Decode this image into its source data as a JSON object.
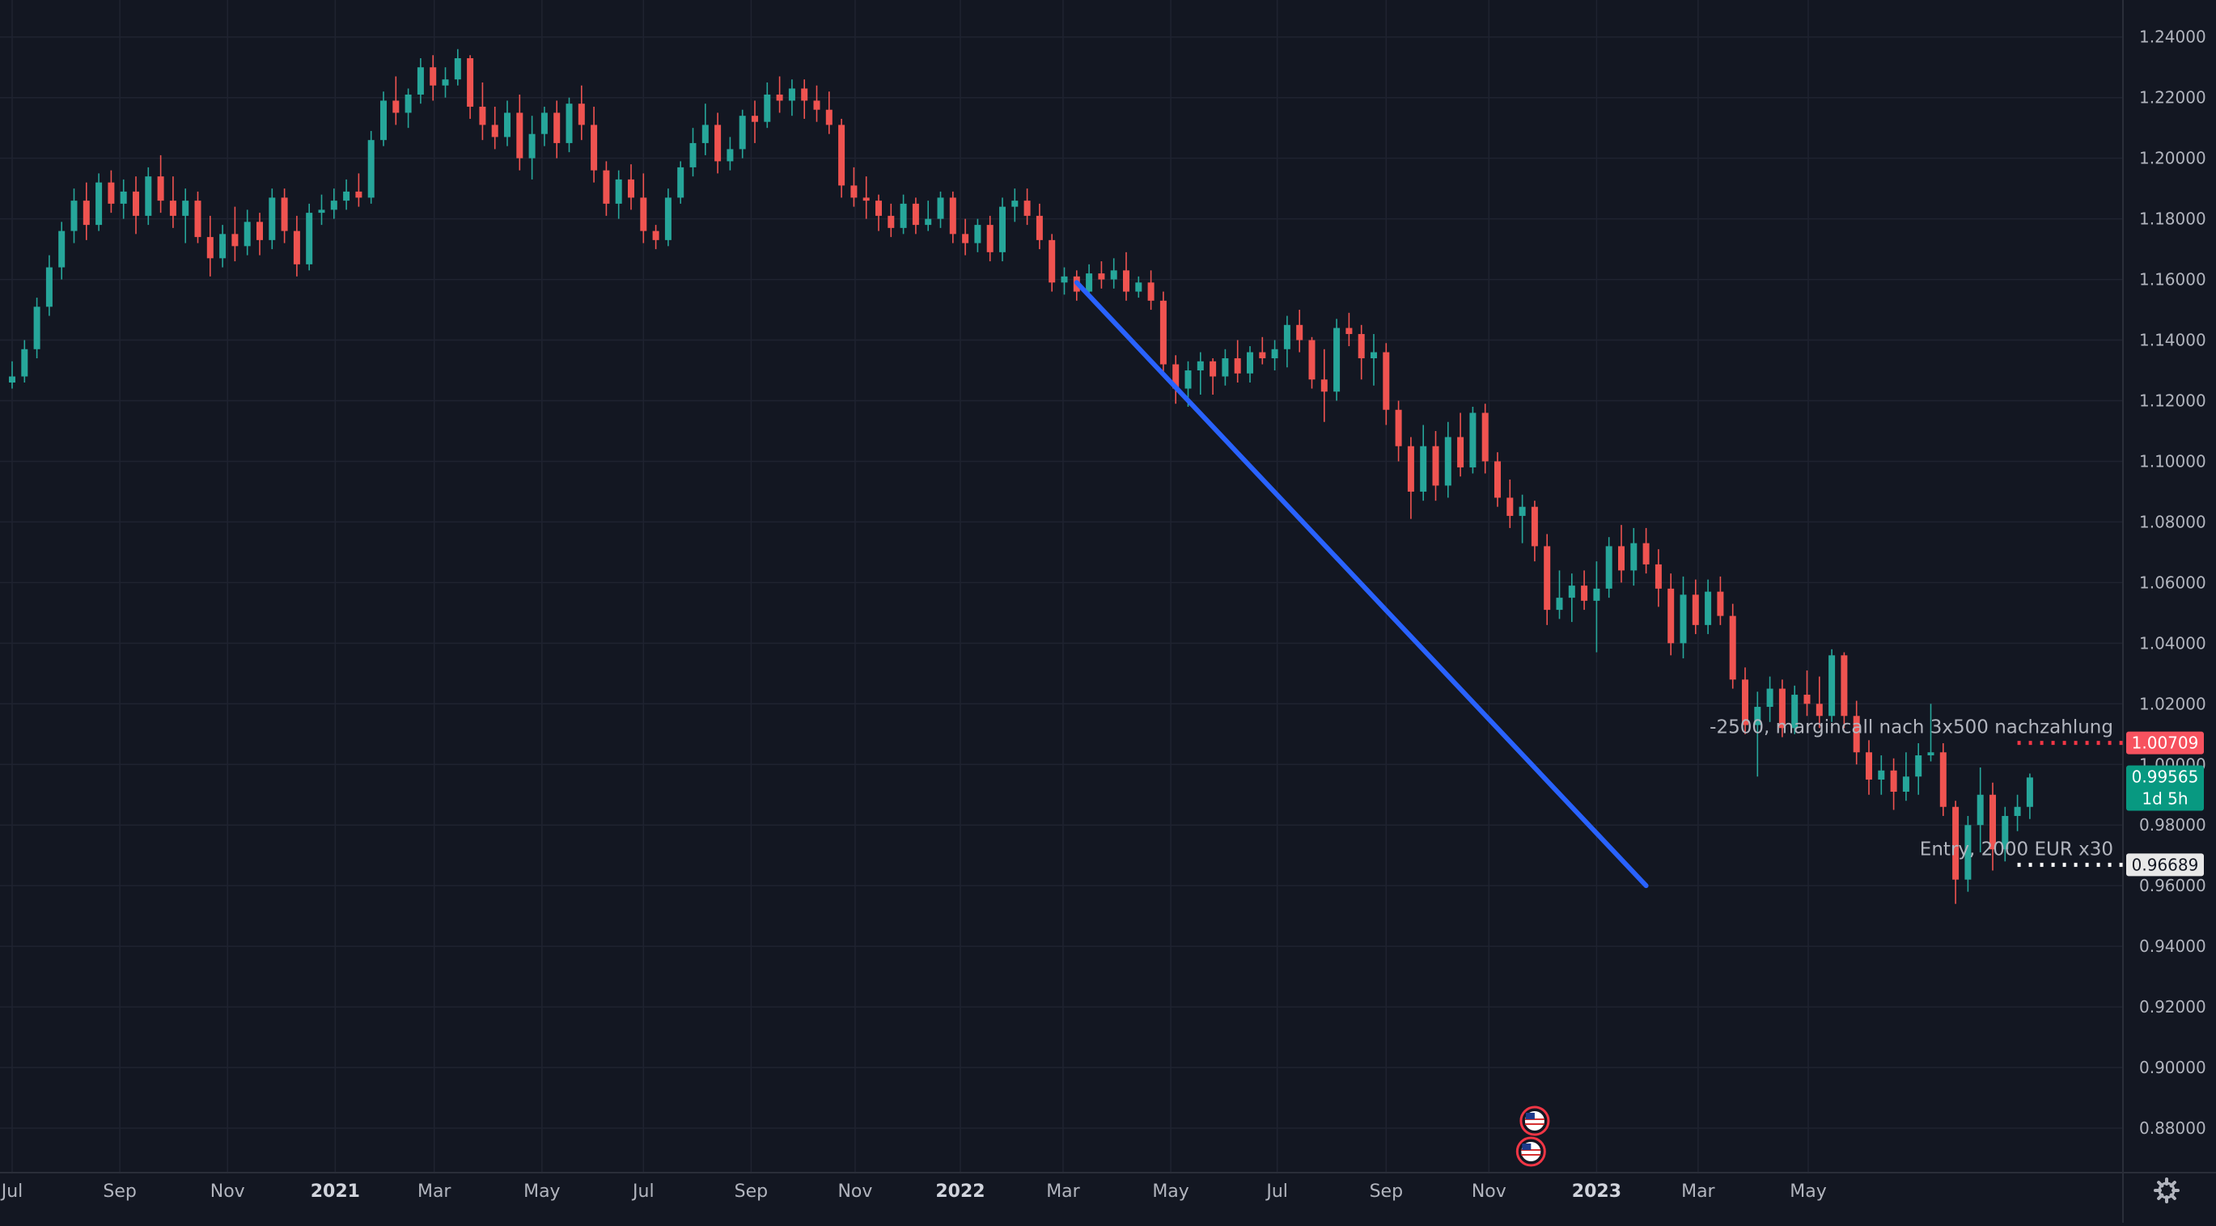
{
  "chart_data": {
    "type": "candlestick",
    "title": "",
    "timeframe": "weekly",
    "colors": {
      "background": "#131722",
      "grid": "#1f2330",
      "up": "#26a69a",
      "down": "#ef5350",
      "trendline": "#2962ff",
      "axis_text": "#b2b5be",
      "margin_line": "#f23645",
      "entry_line": "#ffffff",
      "current_price_bg": "#089981"
    },
    "x_axis": {
      "ticks": [
        {
          "t": 0.0,
          "label": "Jul"
        },
        {
          "t": 8.7,
          "label": "Sep"
        },
        {
          "t": 17.4,
          "label": "Nov"
        },
        {
          "t": 26.1,
          "label": "2021"
        },
        {
          "t": 34.1,
          "label": "Mar"
        },
        {
          "t": 42.8,
          "label": "May"
        },
        {
          "t": 51.0,
          "label": "Jul"
        },
        {
          "t": 59.7,
          "label": "Sep"
        },
        {
          "t": 68.1,
          "label": "Nov"
        },
        {
          "t": 76.6,
          "label": "2022"
        },
        {
          "t": 84.9,
          "label": "Mar"
        },
        {
          "t": 93.6,
          "label": "May"
        },
        {
          "t": 102.2,
          "label": "Jul"
        },
        {
          "t": 111.0,
          "label": "Sep"
        },
        {
          "t": 119.3,
          "label": "Nov"
        },
        {
          "t": 128.0,
          "label": "2023"
        },
        {
          "t": 136.2,
          "label": "Mar"
        },
        {
          "t": 145.1,
          "label": "May"
        }
      ]
    },
    "y_axis": {
      "ylim": [
        0.872,
        1.2442
      ],
      "ticks": [
        "1.24000",
        "1.22000",
        "1.20000",
        "1.18000",
        "1.16000",
        "1.14000",
        "1.12000",
        "1.10000",
        "1.08000",
        "1.06000",
        "1.04000",
        "1.02000",
        "1.00000",
        "0.98000",
        "0.96000",
        "0.94000",
        "0.92000",
        "0.90000",
        "0.88000"
      ]
    },
    "candles": [
      [
        1.126,
        1.133,
        1.124,
        1.128
      ],
      [
        1.128,
        1.14,
        1.126,
        1.137
      ],
      [
        1.137,
        1.154,
        1.134,
        1.151
      ],
      [
        1.151,
        1.168,
        1.148,
        1.164
      ],
      [
        1.164,
        1.179,
        1.16,
        1.176
      ],
      [
        1.176,
        1.19,
        1.172,
        1.186
      ],
      [
        1.186,
        1.192,
        1.173,
        1.178
      ],
      [
        1.178,
        1.195,
        1.176,
        1.192
      ],
      [
        1.192,
        1.196,
        1.182,
        1.185
      ],
      [
        1.185,
        1.193,
        1.18,
        1.189
      ],
      [
        1.189,
        1.194,
        1.175,
        1.181
      ],
      [
        1.181,
        1.197,
        1.178,
        1.194
      ],
      [
        1.194,
        1.201,
        1.182,
        1.186
      ],
      [
        1.186,
        1.194,
        1.177,
        1.181
      ],
      [
        1.181,
        1.19,
        1.172,
        1.186
      ],
      [
        1.186,
        1.189,
        1.172,
        1.174
      ],
      [
        1.174,
        1.181,
        1.161,
        1.167
      ],
      [
        1.167,
        1.178,
        1.164,
        1.175
      ],
      [
        1.175,
        1.184,
        1.166,
        1.171
      ],
      [
        1.171,
        1.183,
        1.168,
        1.179
      ],
      [
        1.179,
        1.182,
        1.168,
        1.173
      ],
      [
        1.173,
        1.19,
        1.17,
        1.187
      ],
      [
        1.187,
        1.19,
        1.172,
        1.176
      ],
      [
        1.176,
        1.181,
        1.161,
        1.165
      ],
      [
        1.165,
        1.185,
        1.163,
        1.182
      ],
      [
        1.182,
        1.188,
        1.178,
        1.183
      ],
      [
        1.183,
        1.19,
        1.18,
        1.186
      ],
      [
        1.186,
        1.193,
        1.183,
        1.189
      ],
      [
        1.189,
        1.195,
        1.184,
        1.187
      ],
      [
        1.187,
        1.209,
        1.185,
        1.206
      ],
      [
        1.206,
        1.222,
        1.204,
        1.219
      ],
      [
        1.219,
        1.227,
        1.211,
        1.215
      ],
      [
        1.215,
        1.223,
        1.21,
        1.221
      ],
      [
        1.221,
        1.233,
        1.218,
        1.23
      ],
      [
        1.23,
        1.234,
        1.219,
        1.224
      ],
      [
        1.224,
        1.23,
        1.22,
        1.226
      ],
      [
        1.226,
        1.236,
        1.224,
        1.233
      ],
      [
        1.233,
        1.234,
        1.213,
        1.217
      ],
      [
        1.217,
        1.225,
        1.206,
        1.211
      ],
      [
        1.211,
        1.217,
        1.203,
        1.207
      ],
      [
        1.207,
        1.219,
        1.204,
        1.215
      ],
      [
        1.215,
        1.221,
        1.196,
        1.2
      ],
      [
        1.2,
        1.214,
        1.193,
        1.208
      ],
      [
        1.208,
        1.217,
        1.204,
        1.215
      ],
      [
        1.215,
        1.219,
        1.2,
        1.205
      ],
      [
        1.205,
        1.22,
        1.202,
        1.218
      ],
      [
        1.218,
        1.224,
        1.206,
        1.211
      ],
      [
        1.211,
        1.217,
        1.192,
        1.196
      ],
      [
        1.196,
        1.199,
        1.181,
        1.185
      ],
      [
        1.185,
        1.196,
        1.18,
        1.193
      ],
      [
        1.193,
        1.198,
        1.183,
        1.187
      ],
      [
        1.187,
        1.195,
        1.172,
        1.176
      ],
      [
        1.176,
        1.178,
        1.17,
        1.173
      ],
      [
        1.173,
        1.19,
        1.171,
        1.187
      ],
      [
        1.187,
        1.199,
        1.185,
        1.197
      ],
      [
        1.197,
        1.21,
        1.194,
        1.205
      ],
      [
        1.205,
        1.218,
        1.201,
        1.211
      ],
      [
        1.211,
        1.215,
        1.195,
        1.199
      ],
      [
        1.199,
        1.207,
        1.196,
        1.203
      ],
      [
        1.203,
        1.216,
        1.2,
        1.214
      ],
      [
        1.214,
        1.219,
        1.205,
        1.212
      ],
      [
        1.212,
        1.225,
        1.21,
        1.221
      ],
      [
        1.221,
        1.227,
        1.215,
        1.219
      ],
      [
        1.219,
        1.226,
        1.214,
        1.223
      ],
      [
        1.223,
        1.226,
        1.213,
        1.219
      ],
      [
        1.219,
        1.224,
        1.212,
        1.216
      ],
      [
        1.216,
        1.222,
        1.208,
        1.211
      ],
      [
        1.211,
        1.213,
        1.187,
        1.191
      ],
      [
        1.191,
        1.197,
        1.184,
        1.187
      ],
      [
        1.187,
        1.194,
        1.18,
        1.186
      ],
      [
        1.186,
        1.188,
        1.176,
        1.181
      ],
      [
        1.181,
        1.185,
        1.174,
        1.177
      ],
      [
        1.177,
        1.188,
        1.175,
        1.185
      ],
      [
        1.185,
        1.187,
        1.175,
        1.178
      ],
      [
        1.178,
        1.186,
        1.176,
        1.18
      ],
      [
        1.18,
        1.189,
        1.177,
        1.187
      ],
      [
        1.187,
        1.189,
        1.172,
        1.175
      ],
      [
        1.175,
        1.18,
        1.168,
        1.172
      ],
      [
        1.172,
        1.18,
        1.169,
        1.178
      ],
      [
        1.178,
        1.181,
        1.166,
        1.169
      ],
      [
        1.169,
        1.187,
        1.166,
        1.184
      ],
      [
        1.184,
        1.19,
        1.179,
        1.186
      ],
      [
        1.186,
        1.19,
        1.178,
        1.181
      ],
      [
        1.181,
        1.185,
        1.17,
        1.173
      ],
      [
        1.173,
        1.175,
        1.156,
        1.159
      ],
      [
        1.159,
        1.164,
        1.155,
        1.161
      ],
      [
        1.161,
        1.163,
        1.153,
        1.156
      ],
      [
        1.156,
        1.165,
        1.154,
        1.162
      ],
      [
        1.162,
        1.166,
        1.157,
        1.16
      ],
      [
        1.16,
        1.167,
        1.157,
        1.163
      ],
      [
        1.163,
        1.169,
        1.153,
        1.156
      ],
      [
        1.156,
        1.161,
        1.154,
        1.159
      ],
      [
        1.159,
        1.163,
        1.15,
        1.153
      ],
      [
        1.153,
        1.156,
        1.128,
        1.132
      ],
      [
        1.132,
        1.135,
        1.119,
        1.124
      ],
      [
        1.124,
        1.133,
        1.118,
        1.13
      ],
      [
        1.13,
        1.136,
        1.122,
        1.133
      ],
      [
        1.133,
        1.134,
        1.122,
        1.128
      ],
      [
        1.128,
        1.137,
        1.125,
        1.134
      ],
      [
        1.134,
        1.14,
        1.126,
        1.129
      ],
      [
        1.129,
        1.138,
        1.126,
        1.136
      ],
      [
        1.136,
        1.141,
        1.132,
        1.134
      ],
      [
        1.134,
        1.14,
        1.13,
        1.137
      ],
      [
        1.137,
        1.148,
        1.131,
        1.145
      ],
      [
        1.145,
        1.15,
        1.136,
        1.14
      ],
      [
        1.14,
        1.141,
        1.124,
        1.127
      ],
      [
        1.127,
        1.137,
        1.113,
        1.123
      ],
      [
        1.123,
        1.147,
        1.12,
        1.144
      ],
      [
        1.144,
        1.149,
        1.138,
        1.142
      ],
      [
        1.142,
        1.145,
        1.127,
        1.134
      ],
      [
        1.134,
        1.142,
        1.125,
        1.136
      ],
      [
        1.136,
        1.139,
        1.112,
        1.117
      ],
      [
        1.117,
        1.12,
        1.1,
        1.105
      ],
      [
        1.105,
        1.108,
        1.081,
        1.09
      ],
      [
        1.09,
        1.112,
        1.087,
        1.105
      ],
      [
        1.105,
        1.11,
        1.087,
        1.092
      ],
      [
        1.092,
        1.113,
        1.088,
        1.108
      ],
      [
        1.108,
        1.116,
        1.095,
        1.098
      ],
      [
        1.098,
        1.118,
        1.096,
        1.116
      ],
      [
        1.116,
        1.119,
        1.096,
        1.1
      ],
      [
        1.1,
        1.103,
        1.085,
        1.088
      ],
      [
        1.088,
        1.094,
        1.078,
        1.082
      ],
      [
        1.082,
        1.089,
        1.073,
        1.085
      ],
      [
        1.085,
        1.087,
        1.067,
        1.072
      ],
      [
        1.072,
        1.076,
        1.046,
        1.051
      ],
      [
        1.051,
        1.064,
        1.048,
        1.055
      ],
      [
        1.055,
        1.063,
        1.047,
        1.059
      ],
      [
        1.059,
        1.064,
        1.051,
        1.054
      ],
      [
        1.054,
        1.067,
        1.037,
        1.058
      ],
      [
        1.058,
        1.075,
        1.055,
        1.072
      ],
      [
        1.072,
        1.079,
        1.06,
        1.064
      ],
      [
        1.064,
        1.078,
        1.059,
        1.073
      ],
      [
        1.073,
        1.078,
        1.063,
        1.066
      ],
      [
        1.066,
        1.071,
        1.052,
        1.058
      ],
      [
        1.058,
        1.063,
        1.036,
        1.04
      ],
      [
        1.04,
        1.062,
        1.035,
        1.056
      ],
      [
        1.056,
        1.061,
        1.043,
        1.046
      ],
      [
        1.046,
        1.061,
        1.043,
        1.057
      ],
      [
        1.057,
        1.062,
        1.046,
        1.049
      ],
      [
        1.049,
        1.053,
        1.025,
        1.028
      ],
      [
        1.028,
        1.032,
        1.01,
        1.013
      ],
      [
        1.013,
        1.024,
        0.996,
        1.019
      ],
      [
        1.019,
        1.029,
        1.014,
        1.025
      ],
      [
        1.025,
        1.028,
        1.009,
        1.012
      ],
      [
        1.012,
        1.026,
        1.01,
        1.023
      ],
      [
        1.023,
        1.031,
        1.016,
        1.02
      ],
      [
        1.02,
        1.029,
        1.012,
        1.016
      ],
      [
        1.016,
        1.038,
        1.014,
        1.036
      ],
      [
        1.036,
        1.037,
        1.012,
        1.016
      ],
      [
        1.016,
        1.021,
        1.0,
        1.004
      ],
      [
        1.004,
        1.008,
        0.99,
        0.995
      ],
      [
        0.995,
        1.003,
        0.99,
        0.998
      ],
      [
        0.998,
        1.002,
        0.985,
        0.991
      ],
      [
        0.991,
        1.004,
        0.988,
        0.996
      ],
      [
        0.996,
        1.007,
        0.99,
        1.003
      ],
      [
        1.003,
        1.02,
        1.001,
        1.004
      ],
      [
        1.004,
        1.007,
        0.983,
        0.986
      ],
      [
        0.986,
        0.988,
        0.954,
        0.962
      ],
      [
        0.962,
        0.983,
        0.958,
        0.98
      ],
      [
        0.98,
        0.999,
        0.971,
        0.99
      ],
      [
        0.99,
        0.994,
        0.965,
        0.972
      ],
      [
        0.972,
        0.986,
        0.968,
        0.983
      ],
      [
        0.983,
        0.99,
        0.978,
        0.986
      ],
      [
        0.986,
        0.997,
        0.982,
        0.9957
      ]
    ],
    "trendline": {
      "start": {
        "t": 86.0,
        "price": 1.159
      },
      "end": {
        "t": 132.0,
        "price": 0.96
      }
    },
    "horizontal_lines": [
      {
        "name": "margin-call",
        "price": 1.00709,
        "label": "1.00709",
        "annotation": "-2500, margincall nach 3x500 nachzahlung",
        "color": "#f23645"
      },
      {
        "name": "entry",
        "price": 0.96689,
        "label": "0.96689",
        "annotation": "Entry, 2000 EUR x30",
        "color": "#ffffff"
      }
    ],
    "current_price": {
      "label": "0.99565",
      "price": 0.99565,
      "countdown": "1d 5h"
    },
    "events": [
      {
        "t": 123.0,
        "flag": "us-flag-icon"
      },
      {
        "t": 122.7,
        "flag": "us-flag-icon"
      }
    ]
  },
  "settings_icon": "gear-icon"
}
